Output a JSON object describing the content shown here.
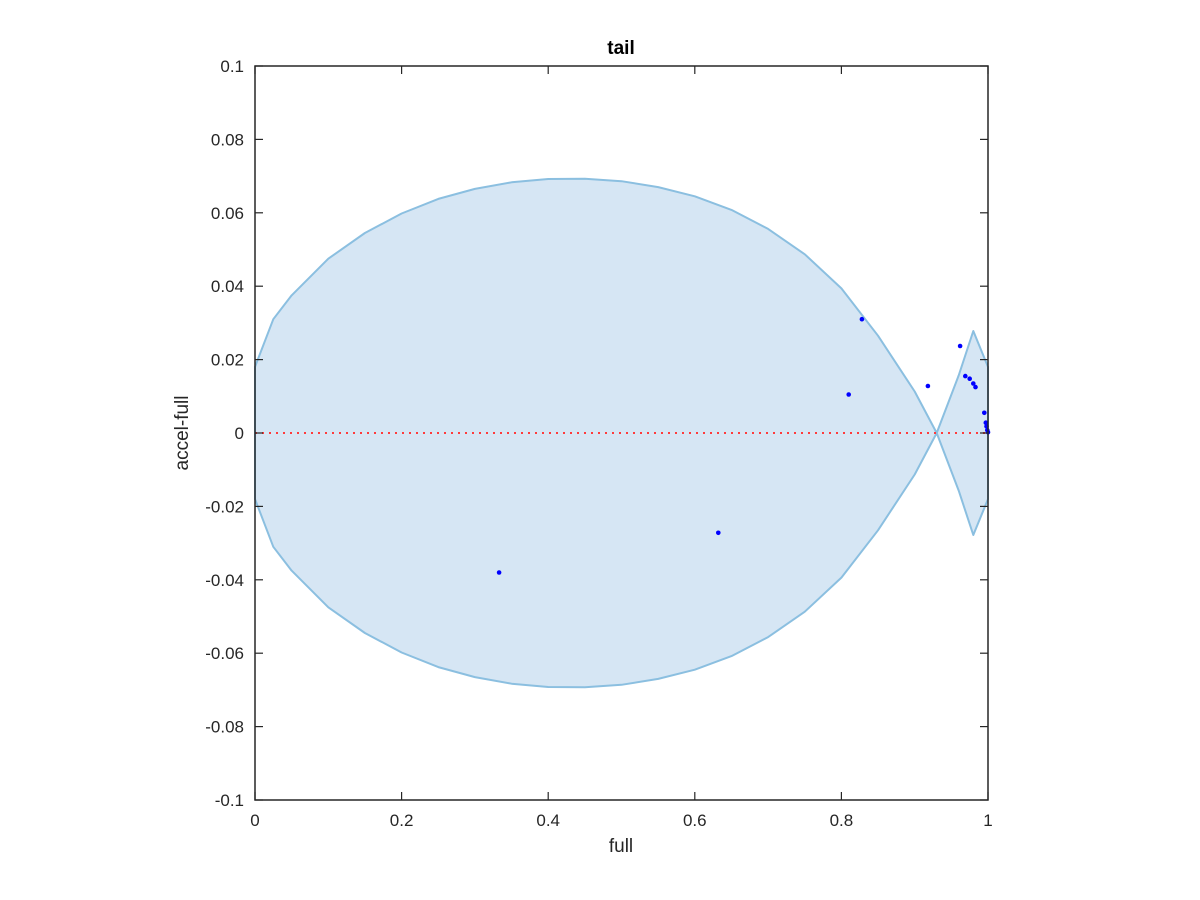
{
  "chart_data": {
    "type": "scatter",
    "title": "tail",
    "xlabel": "full",
    "ylabel": "accel-full",
    "xlim": [
      0,
      1
    ],
    "ylim": [
      -0.1,
      0.1
    ],
    "xticks": [
      0,
      0.2,
      0.4,
      0.6,
      0.8,
      1
    ],
    "xtick_labels": [
      "0",
      "0.2",
      "0.4",
      "0.6",
      "0.8",
      "1"
    ],
    "yticks": [
      0.1,
      0.08,
      0.06,
      0.04,
      0.02,
      0,
      -0.02,
      -0.04,
      -0.06,
      -0.08,
      -0.1
    ],
    "ytick_labels": [
      "0.1",
      "0.08",
      "0.06",
      "0.04",
      "0.02",
      "0",
      "-0.02",
      "-0.04",
      "-0.06",
      "-0.08",
      "-0.1"
    ],
    "grid": false,
    "box": true,
    "points": [
      {
        "x": 0.333,
        "y": -0.038
      },
      {
        "x": 0.632,
        "y": -0.0272
      },
      {
        "x": 0.81,
        "y": 0.0105
      },
      {
        "x": 0.828,
        "y": 0.031
      },
      {
        "x": 0.918,
        "y": 0.0128
      },
      {
        "x": 0.962,
        "y": 0.0237
      },
      {
        "x": 0.969,
        "y": 0.0155
      },
      {
        "x": 0.975,
        "y": 0.0148
      },
      {
        "x": 0.98,
        "y": 0.0135
      },
      {
        "x": 0.983,
        "y": 0.0125
      },
      {
        "x": 0.995,
        "y": 0.0055
      },
      {
        "x": 0.997,
        "y": 0.0028
      },
      {
        "x": 0.998,
        "y": 0.0018
      },
      {
        "x": 0.999,
        "y": 0.0008
      },
      {
        "x": 1.0,
        "y": 0.0002
      }
    ],
    "ellipse": {
      "outline": [
        [
          0,
          0.018
        ],
        [
          0.025,
          0.031
        ],
        [
          0.05,
          0.0375
        ],
        [
          0.1,
          0.0475
        ],
        [
          0.15,
          0.0545
        ],
        [
          0.2,
          0.0598
        ],
        [
          0.25,
          0.0638
        ],
        [
          0.3,
          0.0665
        ],
        [
          0.35,
          0.0683
        ],
        [
          0.4,
          0.0692
        ],
        [
          0.45,
          0.0693
        ],
        [
          0.5,
          0.0686
        ],
        [
          0.55,
          0.067
        ],
        [
          0.6,
          0.0645
        ],
        [
          0.65,
          0.0608
        ],
        [
          0.7,
          0.0556
        ],
        [
          0.75,
          0.0487
        ],
        [
          0.8,
          0.0394
        ],
        [
          0.85,
          0.0265
        ],
        [
          0.9,
          0.0113
        ],
        [
          0.93,
          0.0
        ],
        [
          0.96,
          -0.0157
        ],
        [
          0.98,
          -0.0278
        ],
        [
          1.0,
          -0.018
        ],
        [
          1.0,
          0.018
        ],
        [
          0.98,
          0.0278
        ],
        [
          0.96,
          0.0157
        ],
        [
          0.93,
          0.0
        ],
        [
          0.9,
          -0.0113
        ],
        [
          0.85,
          -0.0265
        ],
        [
          0.8,
          -0.0394
        ],
        [
          0.75,
          -0.0487
        ],
        [
          0.7,
          -0.0556
        ],
        [
          0.65,
          -0.0608
        ],
        [
          0.6,
          -0.0645
        ],
        [
          0.55,
          -0.067
        ],
        [
          0.5,
          -0.0686
        ],
        [
          0.45,
          -0.0693
        ],
        [
          0.4,
          -0.0692
        ],
        [
          0.35,
          -0.0683
        ],
        [
          0.3,
          -0.0665
        ],
        [
          0.25,
          -0.0638
        ],
        [
          0.2,
          -0.0598
        ],
        [
          0.15,
          -0.0545
        ],
        [
          0.1,
          -0.0475
        ],
        [
          0.05,
          -0.0375
        ],
        [
          0.025,
          -0.031
        ],
        [
          0,
          -0.018
        ]
      ],
      "fill_color": "#d6e6f4",
      "edge_color": "#8bbfe0"
    },
    "reference_line": {
      "y": 0,
      "style": "dotted",
      "color": "#ff3b3b"
    },
    "marker_color": "#0000ff"
  }
}
